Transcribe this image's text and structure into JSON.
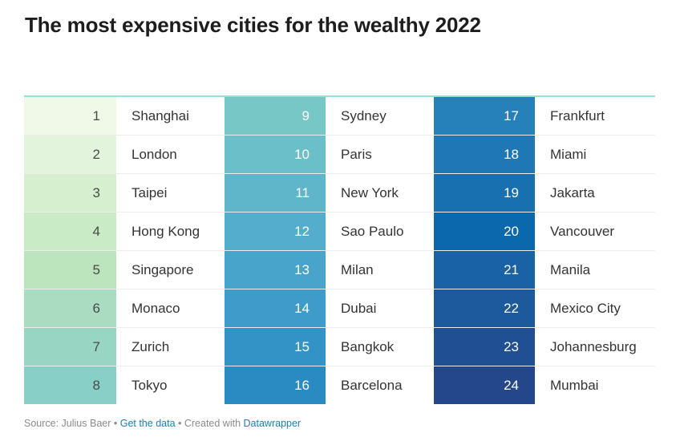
{
  "title": "The most expensive cities for the wealthy 2022",
  "chart_data": {
    "type": "table",
    "title": "The most expensive cities for the wealthy 2022",
    "columns": [
      [
        {
          "rank": "1",
          "city": "Shanghai",
          "color": "#f0f9e8"
        },
        {
          "rank": "2",
          "city": "London",
          "color": "#e3f4dc"
        },
        {
          "rank": "3",
          "city": "Taipei",
          "color": "#d6efcf"
        },
        {
          "rank": "4",
          "city": "Hong Kong",
          "color": "#c9ebc5"
        },
        {
          "rank": "5",
          "city": "Singapore",
          "color": "#bde5bd"
        },
        {
          "rank": "6",
          "city": "Monaco",
          "color": "#a9dcc0"
        },
        {
          "rank": "7",
          "city": "Zurich",
          "color": "#98d6c3"
        },
        {
          "rank": "8",
          "city": "Tokyo",
          "color": "#88d0c7"
        }
      ],
      [
        {
          "rank": "9",
          "city": "Sydney",
          "color": "#76c7c6"
        },
        {
          "rank": "10",
          "city": "Paris",
          "color": "#6bbfc8"
        },
        {
          "rank": "11",
          "city": "New York",
          "color": "#5fb6cb"
        },
        {
          "rank": "12",
          "city": "Sao Paulo",
          "color": "#54adcd"
        },
        {
          "rank": "13",
          "city": "Milan",
          "color": "#49a4cc"
        },
        {
          "rank": "14",
          "city": "Dubai",
          "color": "#3e9bca"
        },
        {
          "rank": "15",
          "city": "Bangkok",
          "color": "#3392c6"
        },
        {
          "rank": "16",
          "city": "Barcelona",
          "color": "#2a8ac2"
        }
      ],
      [
        {
          "rank": "17",
          "city": "Frankfurt",
          "color": "#2681bb"
        },
        {
          "rank": "18",
          "city": "Miami",
          "color": "#1f78b5"
        },
        {
          "rank": "19",
          "city": "Jakarta",
          "color": "#1870b1"
        },
        {
          "rank": "20",
          "city": "Vancouver",
          "color": "#0c68ad"
        },
        {
          "rank": "21",
          "city": "Manila",
          "color": "#1862a5"
        },
        {
          "rank": "22",
          "city": "Mexico City",
          "color": "#1c599d"
        },
        {
          "rank": "23",
          "city": "Johannesburg",
          "color": "#204f94"
        },
        {
          "rank": "24",
          "city": "Mumbai",
          "color": "#24478b"
        }
      ]
    ]
  },
  "footer": {
    "source": "Source: Julius Baer",
    "sep": " • ",
    "get_data": "Get the data",
    "created": "Created with",
    "datawrapper": "Datawrapper"
  }
}
